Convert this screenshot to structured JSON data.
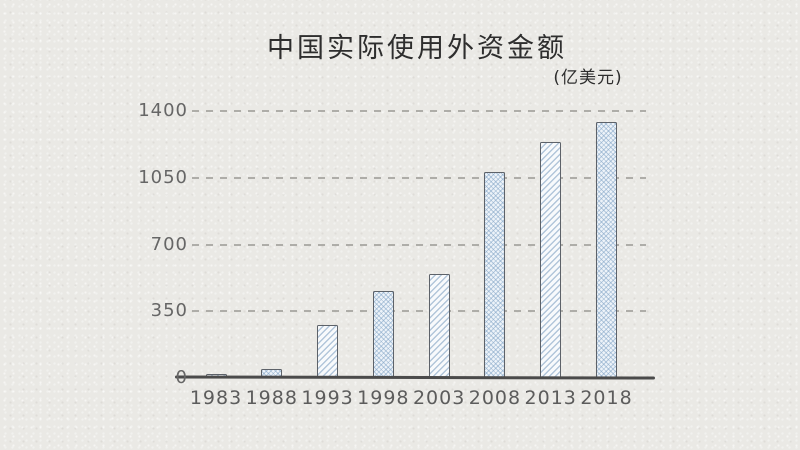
{
  "chart_data": {
    "type": "bar",
    "title": "中国实际使用外资金额",
    "unit_label": "(亿美元)",
    "categories": [
      "1983",
      "1988",
      "1993",
      "1998",
      "2003",
      "2008",
      "2013",
      "2018"
    ],
    "values": [
      20,
      45,
      280,
      455,
      545,
      1080,
      1240,
      1345
    ],
    "xlabel": "",
    "ylabel": "",
    "yticks": [
      0,
      350,
      700,
      1050,
      1400
    ],
    "ytick_labels": [
      "0",
      "350",
      "700",
      "1050",
      "1400"
    ],
    "ylim": [
      0,
      1400
    ],
    "grid": "horizontal-dashed",
    "legend": "none",
    "style": "hand-drawn on paper",
    "bar_patterns": [
      "diagonal",
      "crosshatch",
      "diagonal",
      "crosshatch",
      "diagonal",
      "crosshatch",
      "diagonal",
      "crosshatch"
    ],
    "colors": {
      "background": "#eae9e5",
      "bar_outline": "#5d6269",
      "bar_hatch_blue": "#7a9ec2",
      "axis_line": "#4b4b4b",
      "gridline": "#a3a29d",
      "title_text": "#2e2e2e",
      "tick_text": "#666666"
    }
  }
}
